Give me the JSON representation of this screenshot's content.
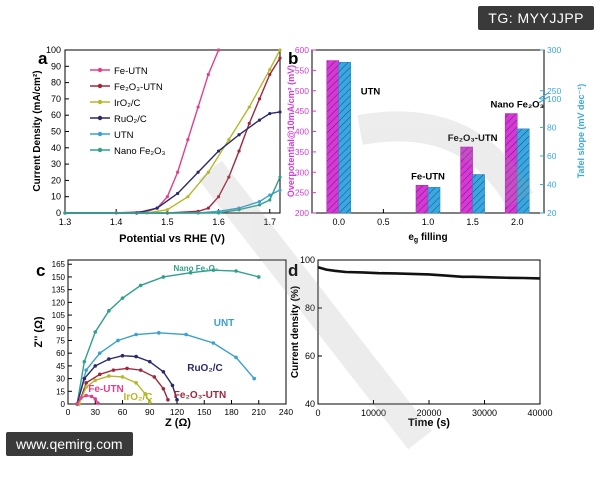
{
  "watermark": {
    "top_right": "TG: MYYJJPP",
    "bottom_left": "www.qemirg.com"
  },
  "chart_data": [
    {
      "panel": "a",
      "type": "line",
      "xlabel": "Potential vs RHE (V)",
      "ylabel": "Current Density (mA/cm²)",
      "xlim": [
        1.3,
        1.72
      ],
      "ylim": [
        0,
        100
      ],
      "xticks": [
        "1.3",
        "1.4",
        "1.5",
        "1.6",
        "1.7"
      ],
      "yticks": [
        "0",
        "10",
        "20",
        "30",
        "40",
        "50",
        "60",
        "70",
        "80",
        "90",
        "100"
      ],
      "legend_position": "top-left",
      "series": [
        {
          "name": "Fe-UTN",
          "color": "#e0408a",
          "x": [
            1.3,
            1.4,
            1.46,
            1.48,
            1.5,
            1.52,
            1.54,
            1.56,
            1.58,
            1.6
          ],
          "y": [
            0,
            0,
            1,
            3,
            10,
            25,
            45,
            65,
            85,
            100
          ]
        },
        {
          "name": "Fe₂O₃-UTN",
          "color": "#a0283c",
          "x": [
            1.3,
            1.5,
            1.56,
            1.58,
            1.6,
            1.62,
            1.64,
            1.66,
            1.68,
            1.7,
            1.72
          ],
          "y": [
            0,
            0,
            1,
            3,
            10,
            22,
            38,
            55,
            70,
            85,
            95
          ]
        },
        {
          "name": "IrO₂/C",
          "color": "#b5b82a",
          "x": [
            1.3,
            1.46,
            1.5,
            1.54,
            1.58,
            1.62,
            1.66,
            1.7,
            1.72
          ],
          "y": [
            0,
            0,
            2,
            10,
            25,
            45,
            65,
            88,
            100
          ]
        },
        {
          "name": "RuO₂/C",
          "color": "#2a2a6a",
          "x": [
            1.3,
            1.44,
            1.48,
            1.52,
            1.56,
            1.6,
            1.64,
            1.68,
            1.7,
            1.72
          ],
          "y": [
            0,
            0,
            3,
            12,
            25,
            38,
            48,
            57,
            61,
            62
          ]
        },
        {
          "name": "UTN",
          "color": "#3aa0d0",
          "x": [
            1.3,
            1.56,
            1.6,
            1.64,
            1.68,
            1.7,
            1.72
          ],
          "y": [
            0,
            0,
            1,
            3,
            7,
            11,
            14
          ]
        },
        {
          "name": "Nano Fe₂O₃",
          "color": "#30a08a",
          "x": [
            1.3,
            1.6,
            1.64,
            1.68,
            1.7,
            1.72
          ],
          "y": [
            0,
            0,
            2,
            5,
            8,
            22
          ]
        }
      ]
    },
    {
      "panel": "b",
      "type": "bar",
      "xlabel": "eg filling",
      "ylabel_left": "Overpotential@10mA/cm² (mV)",
      "ylabel_right": "Tafel slope (mV dec⁻¹)",
      "xlim": [
        -0.3,
        2.3
      ],
      "ylim_left": [
        200,
        600
      ],
      "ylim_right": [
        20,
        300
      ],
      "xticks": [
        "0.0",
        "0.5",
        "1.0",
        "1.5",
        "2.0"
      ],
      "yticks_left": [
        "200",
        "250",
        "300",
        "350",
        "400",
        "450",
        "500",
        "550",
        "600"
      ],
      "yticks_right": [
        "20",
        "40",
        "60",
        "80",
        "100",
        "250",
        "300"
      ],
      "right_axis_break": [
        100,
        250
      ],
      "colors": {
        "overpotential": "#d63ad6",
        "tafel": "#3aa8e0"
      },
      "groups": [
        {
          "label": "UTN",
          "x": 0.0,
          "overpotential": 574,
          "tafel": 285
        },
        {
          "label": "Fe-UTN",
          "x": 1.0,
          "overpotential": 268,
          "tafel": 38
        },
        {
          "label": "Fe₂O₃-UTN",
          "x": 1.5,
          "overpotential": 362,
          "tafel": 47
        },
        {
          "label": "Nano Fe₂O₃",
          "x": 2.0,
          "overpotential": 444,
          "tafel": 79
        }
      ]
    },
    {
      "panel": "c",
      "type": "scatter",
      "xlabel": "Z (Ω)",
      "ylabel": "Z'' (Ω)",
      "xlim": [
        0,
        240
      ],
      "ylim": [
        0,
        170
      ],
      "xticks": [
        "0",
        "30",
        "60",
        "90",
        "120",
        "150",
        "180",
        "210",
        "240"
      ],
      "yticks": [
        "0",
        "15",
        "30",
        "45",
        "60",
        "75",
        "90",
        "105",
        "120",
        "135",
        "150",
        "165"
      ],
      "series": [
        {
          "name": "Nano Fe₂O₃",
          "color": "#30a08a",
          "x": [
            10,
            18,
            30,
            45,
            60,
            80,
            105,
            135,
            160,
            185,
            210
          ],
          "y": [
            0,
            50,
            85,
            110,
            125,
            140,
            150,
            155,
            158,
            157,
            150
          ]
        },
        {
          "name": "UNT",
          "color": "#3aa0d0",
          "x": [
            10,
            20,
            35,
            55,
            75,
            100,
            130,
            160,
            185,
            205
          ],
          "y": [
            0,
            40,
            60,
            75,
            82,
            84,
            82,
            72,
            55,
            30
          ]
        },
        {
          "name": "RuO₂/C",
          "color": "#2a2a6a",
          "x": [
            10,
            18,
            30,
            45,
            60,
            75,
            90,
            105,
            115,
            120
          ],
          "y": [
            0,
            30,
            45,
            53,
            57,
            56,
            50,
            38,
            22,
            5
          ]
        },
        {
          "name": "Fe₂O₃-UTN",
          "color": "#a0283c",
          "x": [
            12,
            20,
            35,
            50,
            65,
            80,
            95,
            105,
            110
          ],
          "y": [
            0,
            25,
            35,
            40,
            42,
            40,
            32,
            18,
            5
          ]
        },
        {
          "name": "IrO₂/C",
          "color": "#b5b82a",
          "x": [
            12,
            20,
            30,
            45,
            60,
            75,
            85,
            90
          ],
          "y": [
            0,
            20,
            28,
            33,
            32,
            25,
            12,
            2
          ]
        },
        {
          "name": "Fe-UTN",
          "color": "#e0408a",
          "x": [
            10,
            14,
            20,
            26,
            30,
            33
          ],
          "y": [
            0,
            7,
            10,
            9,
            6,
            1
          ]
        }
      ]
    },
    {
      "panel": "d",
      "type": "line",
      "xlabel": "Time (s)",
      "ylabel": "Current density (%)",
      "xlim": [
        0,
        40000
      ],
      "ylim": [
        40,
        100
      ],
      "xticks": [
        "0",
        "10000",
        "20000",
        "30000",
        "40000"
      ],
      "yticks": [
        "40",
        "60",
        "80",
        "100"
      ],
      "series": [
        {
          "name": "",
          "color": "#111111",
          "x": [
            0,
            1500,
            3000,
            5000,
            8000,
            11000,
            14000,
            17000,
            20000,
            23000,
            26000,
            28000,
            31000,
            34000,
            37000,
            40000
          ],
          "y": [
            97,
            96,
            95.5,
            95,
            94.8,
            94.5,
            94.4,
            94.2,
            94,
            93.5,
            93,
            93,
            92.8,
            92.6,
            92.5,
            92.3
          ]
        }
      ]
    }
  ]
}
